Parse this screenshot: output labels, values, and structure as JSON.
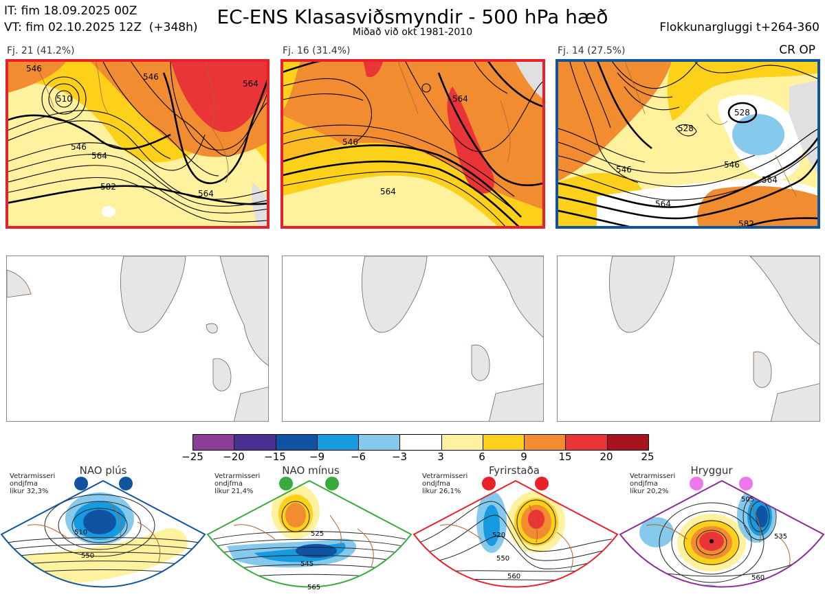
{
  "header": {
    "it_line": "IT: fim 18.09.2025 00Z",
    "vt_line": "VT: fim 02.10.2025 12Z  (+348h)",
    "title": "EC-ENS Klasasviðsmyndir - 500 hPa hæð",
    "subtitle": "Miðað við okt 1981-2010",
    "window": "Flokkunargluggi t+264-360",
    "cr_op": "CR OP"
  },
  "clusters": [
    {
      "label": "Fj. 21 (41.2%)",
      "border_color": "#e8202a",
      "contours": [
        "546",
        "510",
        "546",
        "564",
        "582",
        "546",
        "564",
        "564"
      ]
    },
    {
      "label": "Fj. 16 (31.4%)",
      "border_color": "#e8202a",
      "contours": [
        "546",
        "564",
        "564"
      ]
    },
    {
      "label": "Fj. 14 (27.5%)",
      "border_color": "#1054a0",
      "contours": [
        "528",
        "528",
        "546",
        "546",
        "564",
        "564",
        "582"
      ]
    }
  ],
  "colorbar": {
    "ticks": [
      "−25",
      "−20",
      "−15",
      "−9",
      "−6",
      "−3",
      "3",
      "6",
      "9",
      "15",
      "20",
      "25"
    ],
    "colors": [
      "#8e3d98",
      "#4b2f92",
      "#0f53a3",
      "#179be0",
      "#85c9ec",
      "#ffffff",
      "#fff29e",
      "#fdd01a",
      "#f18c30",
      "#e93438",
      "#a8141e"
    ]
  },
  "regimes": [
    {
      "title": "NAO plús",
      "note": [
        "Vetrarmisseri",
        "ondjfma",
        "líkur 32,3%"
      ],
      "color": "#1054a0",
      "contours": [
        "510",
        "550"
      ]
    },
    {
      "title": "NAO mínus",
      "note": [
        "Vetrarmisseri",
        "ondjfma",
        "líkur 21,4%"
      ],
      "color": "#3aaa3f",
      "contours": [
        "525",
        "545",
        "565"
      ]
    },
    {
      "title": "Fyrirstaða",
      "note": [
        "Vetrarmisseri",
        "ondjfma",
        "líkur 26,1%"
      ],
      "color": "#e8202a",
      "contours": [
        "520",
        "550",
        "560"
      ]
    },
    {
      "title": "Hryggur",
      "note": [
        "Vetrarmisseri",
        "ondjfma",
        "líkur 20,2%"
      ],
      "color": "#8a2d95",
      "contours": [
        "505",
        "535",
        "560"
      ]
    }
  ]
}
